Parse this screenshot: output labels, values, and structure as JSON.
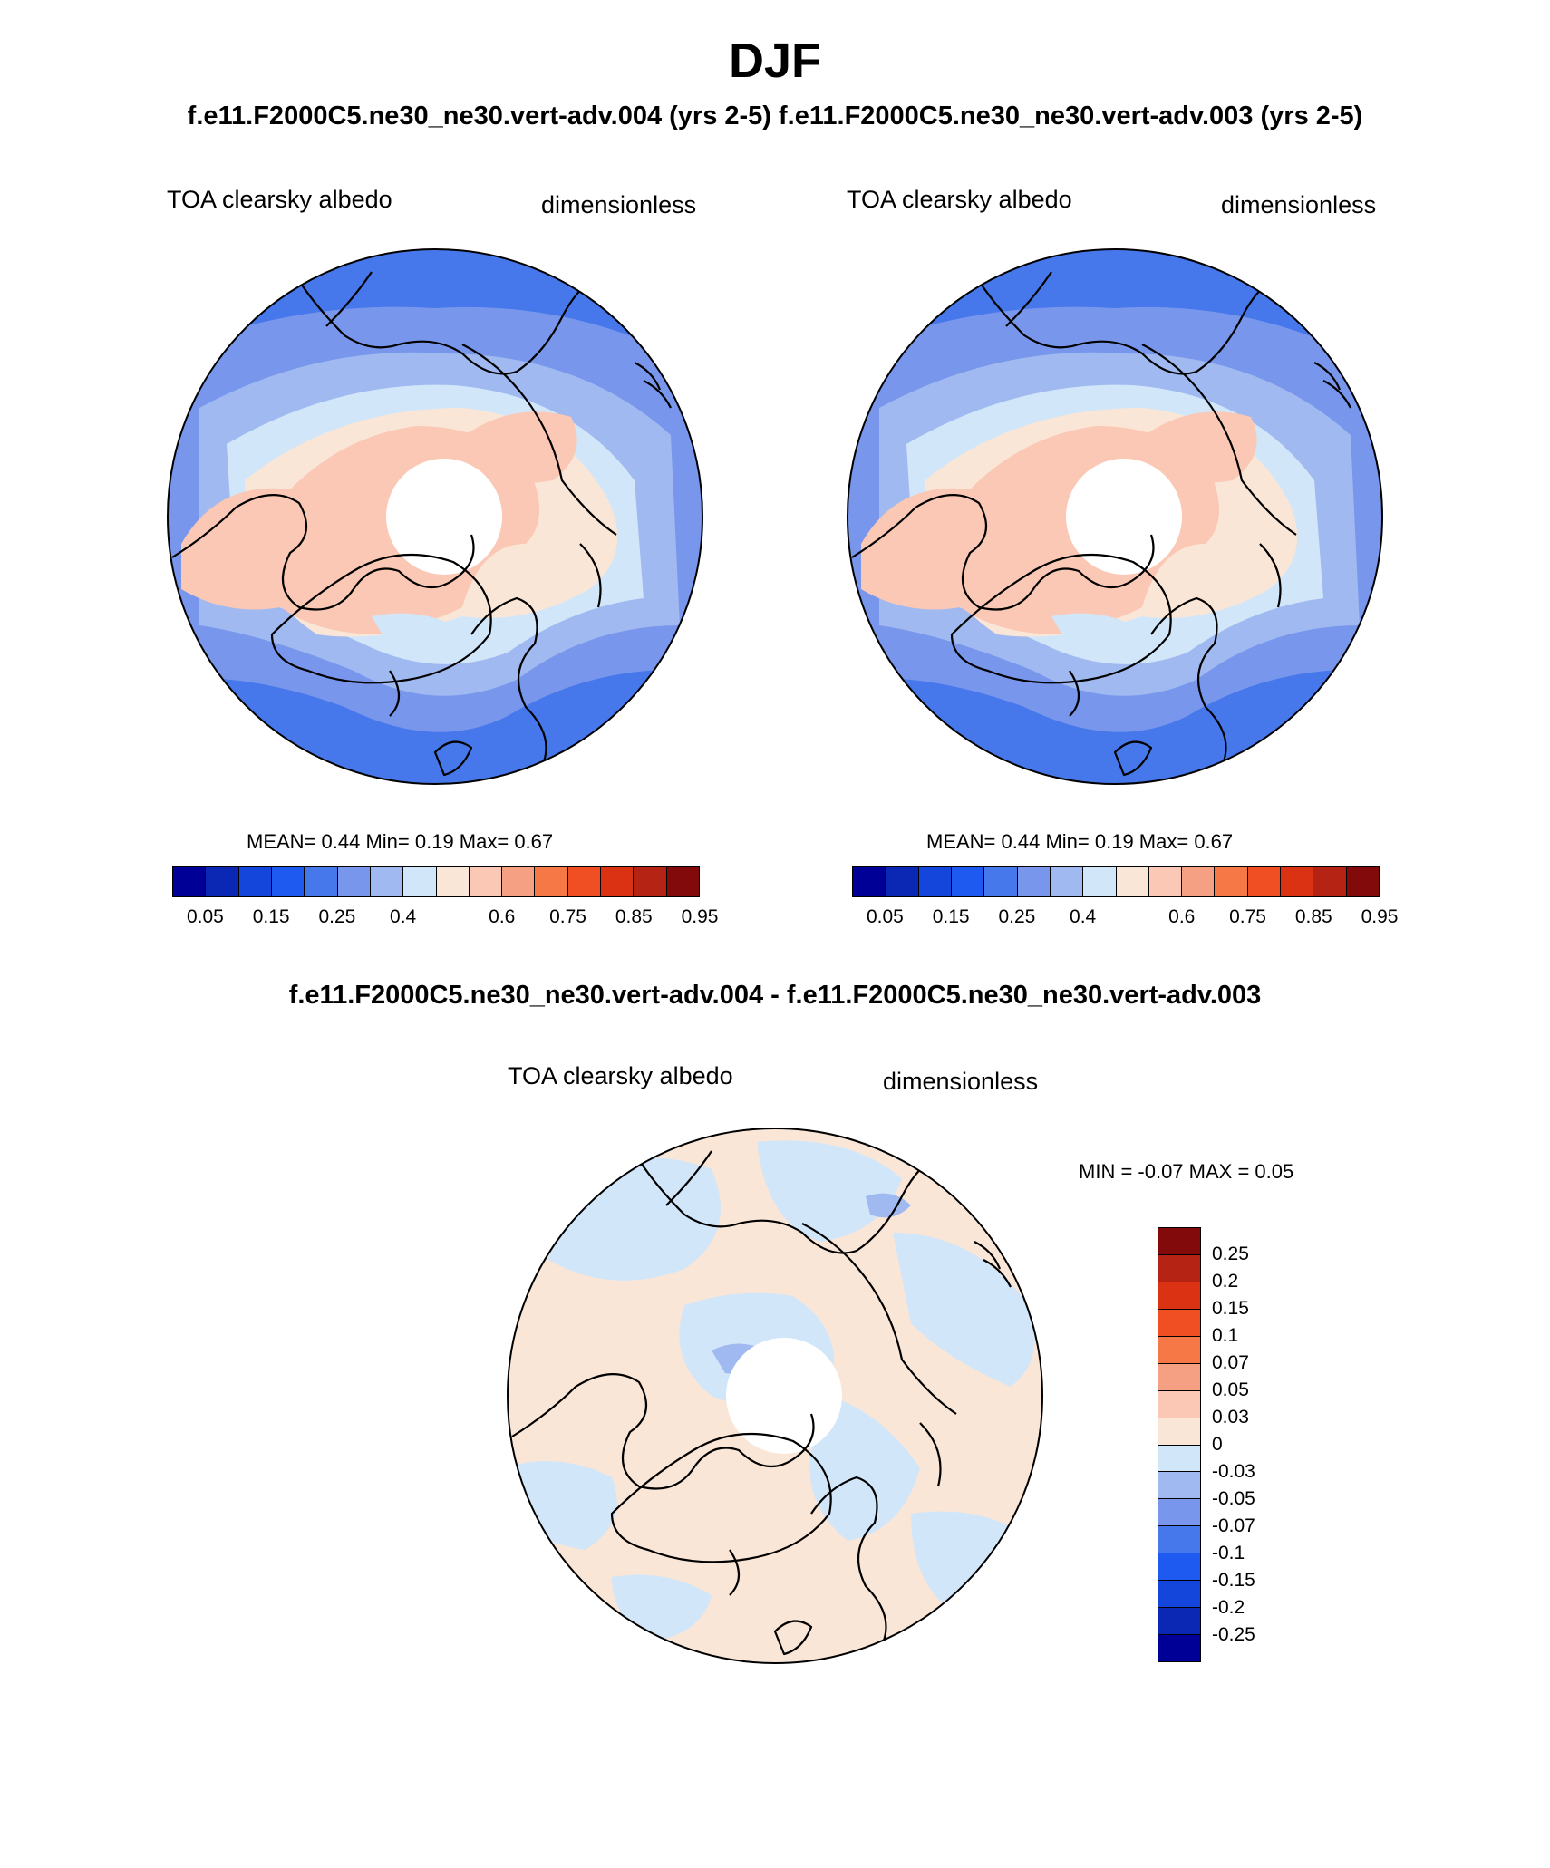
{
  "page": {
    "title": "DJF",
    "subtitle": "f.e11.F2000C5.ne30_ne30.vert-adv.004 (yrs 2-5) f.e11.F2000C5.ne30_ne30.vert-adv.003 (yrs 2-5)",
    "diff_title": "f.e11.F2000C5.ne30_ne30.vert-adv.004 - f.e11.F2000C5.ne30_ne30.vert-adv.003"
  },
  "panels": [
    {
      "variable": "TOA clearsky albedo",
      "units": "dimensionless",
      "stats": "MEAN=   0.44  Min=   0.19  Max=   0.67",
      "field": {
        "mean": 0.44,
        "min": 0.19,
        "max": 0.67
      }
    },
    {
      "variable": "TOA clearsky albedo",
      "units": "dimensionless",
      "stats": "MEAN=   0.44  Min=   0.19  Max=   0.67",
      "field": {
        "mean": 0.44,
        "min": 0.19,
        "max": 0.67
      }
    }
  ],
  "diff_panel": {
    "variable": "TOA clearsky albedo",
    "units": "dimensionless",
    "stats": "MIN =  -0.07 MAX =   0.05",
    "field": {
      "min": -0.07,
      "max": 0.05
    }
  },
  "colorbar_main": {
    "tick_labels": [
      "0.05",
      "0.15",
      "0.25",
      "0.4",
      "0.6",
      "0.75",
      "0.85",
      "0.95"
    ],
    "colors": [
      "#000096",
      "#0a28b4",
      "#1446dc",
      "#1e5af0",
      "#4678eb",
      "#7896eb",
      "#a0b9f0",
      "#d2e6fa",
      "#fae6d7",
      "#fac8b4",
      "#f5a082",
      "#f57846",
      "#f04e23",
      "#dc3214",
      "#b42314",
      "#820a0a"
    ]
  },
  "colorbar_diff": {
    "tick_labels": [
      "0.25",
      "0.2",
      "0.15",
      "0.1",
      "0.07",
      "0.05",
      "0.03",
      "0",
      "-0.03",
      "-0.05",
      "-0.07",
      "-0.1",
      "-0.15",
      "-0.2",
      "-0.25"
    ],
    "colors": [
      "#820a0a",
      "#b42314",
      "#dc3214",
      "#f04e23",
      "#f57846",
      "#f5a082",
      "#fac8b4",
      "#fae6d7",
      "#d2e6fa",
      "#a0b9f0",
      "#7896eb",
      "#4678eb",
      "#1e5af0",
      "#1446dc",
      "#0a28b4",
      "#000096"
    ]
  },
  "map_colors": {
    "ocean_low": "#4678eb",
    "ocean_mid": "#7896eb",
    "ocean_light": "#a0b9f0",
    "ocean_pale": "#d2e6fa",
    "land_pale": "#fae6d7",
    "land_high": "#fac8b4",
    "diff_positive": "#fae6d7",
    "diff_negative": "#d2e6fa",
    "diff_mid_negative": "#a0b9f0",
    "coast": "#000000"
  }
}
